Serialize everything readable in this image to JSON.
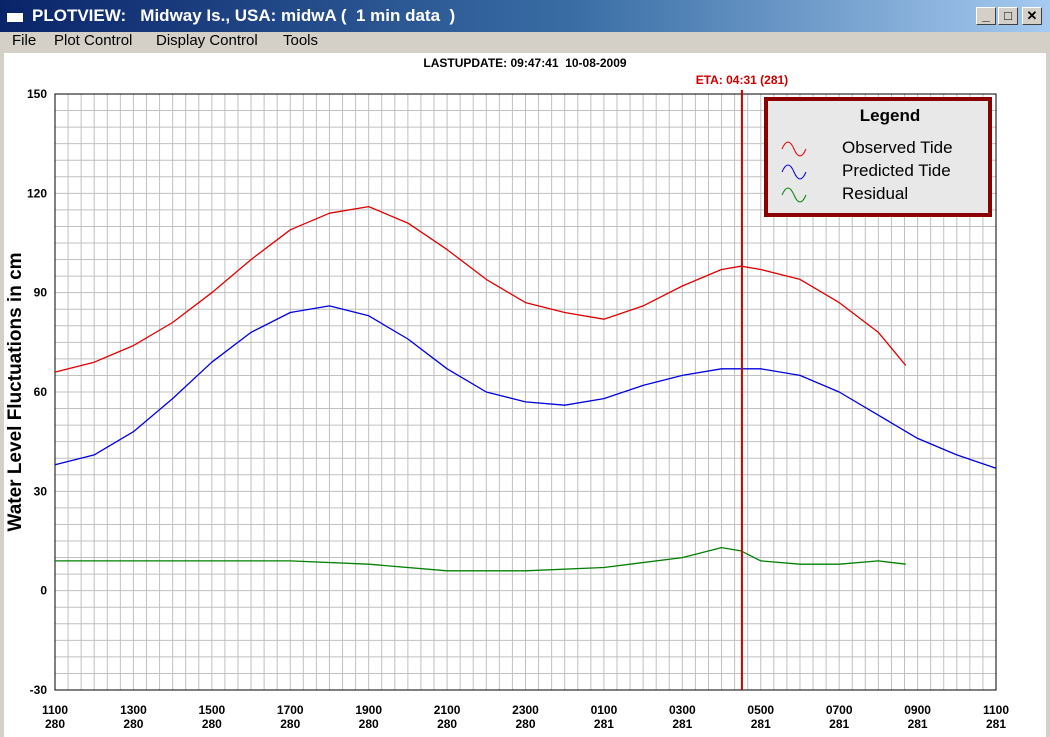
{
  "window": {
    "title": "PLOTVIEW:   Midway Is., USA: midwA (  1 min data  )",
    "btn_min": "_",
    "btn_max": "□",
    "btn_close": "✕"
  },
  "menu": {
    "items": [
      "File",
      "Plot Control",
      "Display Control",
      "Tools"
    ]
  },
  "lastupdate": "LASTUPDATE: 09:47:41  10-08-2009",
  "eta_label": "ETA: 04:31 (281)",
  "legend": {
    "title": "Legend",
    "entries": [
      "Observed Tide",
      "Predicted Tide",
      "Residual"
    ]
  },
  "colors": {
    "observed": "#e00000",
    "predicted": "#0000e0",
    "residual": "#008000",
    "eta": "#cc0000",
    "legend_border": "#8b0000"
  },
  "chart_data": {
    "type": "line",
    "ylabel": "Water Level Fluctuations in cm",
    "xlabel": "",
    "ylim": [
      -30,
      150
    ],
    "yticks": [
      "150",
      "120",
      "90",
      "60",
      "30",
      "0",
      "-30"
    ],
    "xlim_hours": [
      11,
      35
    ],
    "xticks": [
      {
        "time": "1100",
        "day": "280"
      },
      {
        "time": "1300",
        "day": "280"
      },
      {
        "time": "1500",
        "day": "280"
      },
      {
        "time": "1700",
        "day": "280"
      },
      {
        "time": "1900",
        "day": "280"
      },
      {
        "time": "2100",
        "day": "280"
      },
      {
        "time": "2300",
        "day": "280"
      },
      {
        "time": "0100",
        "day": "281"
      },
      {
        "time": "0300",
        "day": "281"
      },
      {
        "time": "0500",
        "day": "281"
      },
      {
        "time": "0700",
        "day": "281"
      },
      {
        "time": "0900",
        "day": "281"
      },
      {
        "time": "1100",
        "day": "281"
      }
    ],
    "eta_x": 28.52,
    "series": [
      {
        "name": "Observed Tide",
        "color": "#e00000",
        "x": [
          11,
          12,
          13,
          14,
          15,
          16,
          17,
          18,
          19,
          20,
          21,
          22,
          23,
          24,
          25,
          26,
          27,
          28,
          28.5,
          29,
          30,
          31,
          32,
          32.7
        ],
        "y": [
          66,
          69,
          74,
          81,
          90,
          100,
          109,
          114,
          116,
          111,
          103,
          94,
          87,
          84,
          82,
          86,
          92,
          97,
          98,
          97,
          94,
          87,
          78,
          68
        ]
      },
      {
        "name": "Predicted Tide",
        "color": "#0000e0",
        "x": [
          11,
          12,
          13,
          14,
          15,
          16,
          17,
          18,
          19,
          20,
          21,
          22,
          23,
          24,
          25,
          26,
          27,
          28,
          29,
          30,
          31,
          32,
          33,
          34,
          35
        ],
        "y": [
          38,
          41,
          48,
          58,
          69,
          78,
          84,
          86,
          83,
          76,
          67,
          60,
          57,
          56,
          58,
          62,
          65,
          67,
          67,
          65,
          60,
          53,
          46,
          41,
          37
        ]
      },
      {
        "name": "Residual",
        "color": "#008000",
        "x": [
          11,
          13,
          15,
          17,
          19,
          21,
          23,
          25,
          27,
          28,
          28.5,
          29,
          30,
          31,
          32,
          32.7
        ],
        "y": [
          9,
          9,
          9,
          9,
          8,
          6,
          6,
          7,
          10,
          13,
          12,
          9,
          8,
          8,
          9,
          8
        ]
      }
    ]
  }
}
